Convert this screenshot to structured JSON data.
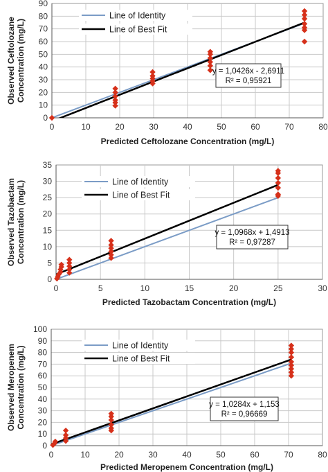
{
  "colors": {
    "identity": "#7b9cc6",
    "best_fit": "#000000",
    "points": "#d6301a",
    "grid": "#c8c8c8"
  },
  "chart_data": [
    {
      "type": "scatter",
      "xlabel": "Predicted Ceftolozane Concentration (mg/L)",
      "ylabel": [
        "Observed Ceftolozane",
        "Concentration (mg/L)"
      ],
      "xlim": [
        0,
        80
      ],
      "ylim": [
        0,
        90
      ],
      "xticks": [
        "0",
        "10",
        "20",
        "30",
        "40",
        "50",
        "60",
        "70",
        "80"
      ],
      "yticks": [
        "0",
        "10",
        "20",
        "30",
        "40",
        "50",
        "60",
        "70",
        "80",
        "90"
      ],
      "xtick_values": [
        0,
        10,
        20,
        30,
        40,
        50,
        60,
        70,
        80
      ],
      "ytick_values": [
        0,
        10,
        20,
        30,
        40,
        50,
        60,
        70,
        80,
        90
      ],
      "grid": true,
      "legend": [
        "Line of Identity",
        "Line of Best Fit"
      ],
      "legend_position": "top-left",
      "equation": "y = 1,0426x - 2,6911",
      "r_squared": "R² = 0,95921",
      "identity_line": {
        "x": [
          0,
          74.5
        ],
        "y": [
          0,
          74.5
        ]
      },
      "best_fit_line": {
        "slope": 1.0426,
        "intercept": -2.6911,
        "x": [
          0,
          74.5
        ]
      },
      "points": [
        [
          0,
          0
        ],
        [
          18.7,
          9.5
        ],
        [
          18.7,
          12
        ],
        [
          18.7,
          14
        ],
        [
          18.7,
          17
        ],
        [
          18.7,
          20
        ],
        [
          18.7,
          23
        ],
        [
          29.7,
          27
        ],
        [
          29.7,
          29
        ],
        [
          29.7,
          31
        ],
        [
          29.7,
          33
        ],
        [
          29.7,
          36
        ],
        [
          46.7,
          37.5
        ],
        [
          46.7,
          41
        ],
        [
          46.7,
          44
        ],
        [
          46.7,
          47
        ],
        [
          46.7,
          50
        ],
        [
          46.7,
          52
        ],
        [
          74.5,
          60
        ],
        [
          74.5,
          69
        ],
        [
          74.5,
          71
        ],
        [
          74.5,
          74
        ],
        [
          74.5,
          78
        ],
        [
          74.5,
          81
        ],
        [
          74.5,
          84
        ]
      ]
    },
    {
      "type": "scatter",
      "xlabel": "Predicted Tazobactam Concentration (mg/L)",
      "ylabel": [
        "Observed Tazobactam",
        "Concentration (mg/L)"
      ],
      "xlim": [
        0,
        30
      ],
      "ylim": [
        0,
        35
      ],
      "xticks": [
        "0",
        "5",
        "10",
        "15",
        "20",
        "25",
        "30"
      ],
      "yticks": [
        "0",
        "5",
        "10",
        "15",
        "20",
        "25",
        "30",
        "35"
      ],
      "xtick_values": [
        0,
        5,
        10,
        15,
        20,
        25,
        30
      ],
      "ytick_values": [
        0,
        5,
        10,
        15,
        20,
        25,
        30,
        35
      ],
      "grid": true,
      "legend": [
        "Line of Identity",
        "Line of Best Fit"
      ],
      "legend_position": "top-left",
      "equation": "y = 1,0968x + 1,4913",
      "r_squared": "R² = 0,97287",
      "identity_line": {
        "x": [
          0,
          25
        ],
        "y": [
          0,
          25
        ]
      },
      "best_fit_line": {
        "slope": 1.0968,
        "intercept": 1.4913,
        "x": [
          0,
          25
        ]
      },
      "points": [
        [
          0.1,
          0.2
        ],
        [
          0.2,
          0.8
        ],
        [
          0.3,
          1.5
        ],
        [
          0.5,
          2.2
        ],
        [
          0.5,
          3
        ],
        [
          0.6,
          3.8
        ],
        [
          0.6,
          4.5
        ],
        [
          1.5,
          2
        ],
        [
          1.5,
          3
        ],
        [
          1.5,
          4
        ],
        [
          1.5,
          5
        ],
        [
          1.5,
          6
        ],
        [
          6.2,
          6.5
        ],
        [
          6.2,
          7.5
        ],
        [
          6.2,
          8.5
        ],
        [
          6.2,
          9.5
        ],
        [
          6.2,
          10.5
        ],
        [
          6.2,
          11.8
        ],
        [
          25,
          25.5
        ],
        [
          25,
          26
        ],
        [
          25,
          28
        ],
        [
          25,
          29.5
        ],
        [
          25,
          31
        ],
        [
          25,
          32.5
        ],
        [
          25,
          33.2
        ]
      ]
    },
    {
      "type": "scatter",
      "xlabel": "Predicted Meropenem Concentration (mg/L)",
      "ylabel": [
        "Observed Meropenem",
        "Concentration (mg/L)"
      ],
      "xlim": [
        0,
        80
      ],
      "ylim": [
        0,
        100
      ],
      "xticks": [
        "0",
        "10",
        "20",
        "30",
        "40",
        "50",
        "60",
        "70",
        "80"
      ],
      "yticks": [
        "0",
        "10",
        "20",
        "30",
        "40",
        "50",
        "60",
        "70",
        "80",
        "90",
        "100"
      ],
      "xtick_values": [
        0,
        10,
        20,
        30,
        40,
        50,
        60,
        70,
        80
      ],
      "ytick_values": [
        0,
        10,
        20,
        30,
        40,
        50,
        60,
        70,
        80,
        90,
        100
      ],
      "grid": true,
      "legend": [
        "Line of Identity",
        "Line of Best Fit"
      ],
      "legend_position": "top-left",
      "equation": "y = 1,0284x + 1,153",
      "r_squared": "R² = 0,96669",
      "identity_line": {
        "x": [
          0,
          70.8
        ],
        "y": [
          0,
          70.8
        ]
      },
      "best_fit_line": {
        "slope": 1.0284,
        "intercept": 1.153,
        "x": [
          0,
          70.8
        ]
      },
      "points": [
        [
          0.5,
          0.5
        ],
        [
          1,
          2
        ],
        [
          1.2,
          3.5
        ],
        [
          4.3,
          4
        ],
        [
          4.3,
          6.5
        ],
        [
          4.3,
          9
        ],
        [
          4.3,
          13
        ],
        [
          17.7,
          13
        ],
        [
          17.7,
          15
        ],
        [
          17.7,
          18
        ],
        [
          17.7,
          22
        ],
        [
          17.7,
          25
        ],
        [
          17.7,
          27.5
        ],
        [
          70.8,
          60
        ],
        [
          70.8,
          63
        ],
        [
          70.8,
          66
        ],
        [
          70.8,
          69
        ],
        [
          70.8,
          72
        ],
        [
          70.8,
          76
        ],
        [
          70.8,
          80
        ],
        [
          70.8,
          83
        ],
        [
          70.8,
          86
        ]
      ]
    }
  ]
}
